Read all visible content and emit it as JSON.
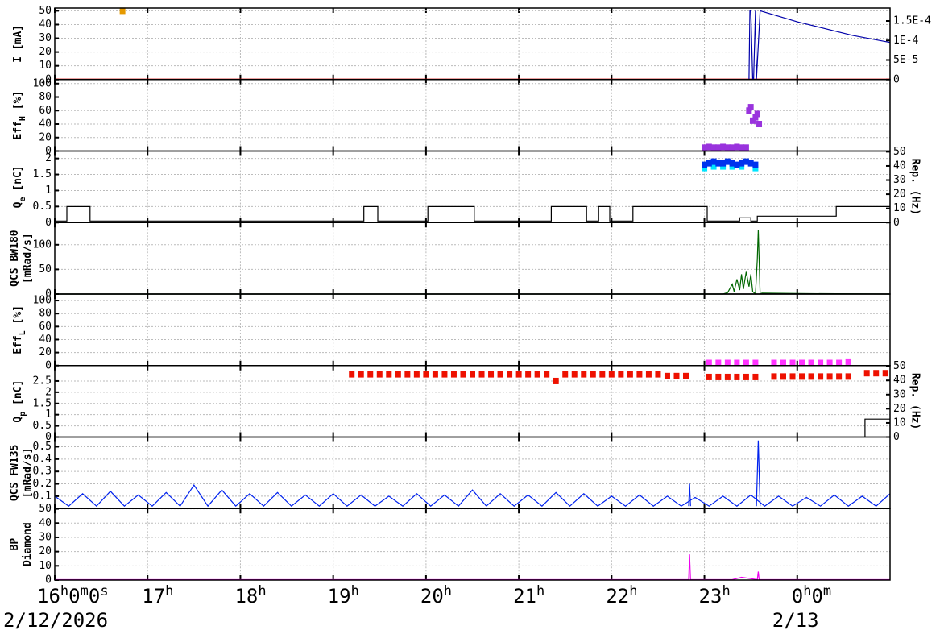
{
  "chart_data": {
    "type": "stripchart",
    "xlim": [
      16,
      25
    ],
    "xticks": [
      {
        "value": 16,
        "label": "16h0m0s"
      },
      {
        "value": 17,
        "label": "17h"
      },
      {
        "value": 18,
        "label": "18h"
      },
      {
        "value": 19,
        "label": "19h"
      },
      {
        "value": 20,
        "label": "20h"
      },
      {
        "value": 21,
        "label": "21h"
      },
      {
        "value": 22,
        "label": "22h"
      },
      {
        "value": 23,
        "label": "23h"
      },
      {
        "value": 24,
        "label": "0h0m"
      }
    ],
    "date_labels": [
      {
        "value": 16,
        "label": "2/12/2026"
      },
      {
        "value": 24,
        "label": "2/13"
      }
    ],
    "grid": true,
    "panels": [
      {
        "ylabel": [
          [
            {
              "text": "I [mA]"
            }
          ]
        ],
        "ylim": [
          0,
          52
        ],
        "yticks": [
          0,
          10,
          20,
          30,
          40,
          50
        ],
        "y2lim": [
          0,
          0.000183
        ],
        "y2ticks": [
          0,
          {
            "value": 5e-05,
            "label": "5E-5"
          },
          {
            "value": 0.0001,
            "label": "1E-4"
          },
          {
            "value": 0.00015,
            "label": "1.5E-4"
          }
        ],
        "series": [
          {
            "type": "line",
            "color": "#cc0000",
            "x": [
              16,
              25
            ],
            "values": [
              0.3,
              0.3
            ]
          },
          {
            "type": "line",
            "color": "#0000aa",
            "x": [
              16,
              23.48,
              23.49,
              23.5,
              23.52,
              23.53,
              23.55,
              23.56,
              23.6,
              23.8,
              24.0,
              24.3,
              24.6,
              25
            ],
            "values": [
              0,
              0,
              50,
              50,
              0,
              0,
              50,
              0,
              50,
              46,
              42,
              37,
              32,
              27
            ]
          },
          {
            "type": "scatter",
            "color": "#e69a00",
            "x": [
              16.73
            ],
            "values": [
              50
            ]
          }
        ]
      },
      {
        "ylabel": [
          [
            {
              "text": "Eff"
            },
            {
              "text": "H",
              "sub": true
            },
            {
              "text": " [%]"
            }
          ]
        ],
        "ylim": [
          0,
          106
        ],
        "yticks": [
          0,
          20,
          40,
          60,
          80,
          100
        ],
        "series": [
          {
            "type": "scatter",
            "color": "#9933dd",
            "x": [
              23.0,
              23.05,
              23.1,
              23.15,
              23.2,
              23.25,
              23.3,
              23.35,
              23.4,
              23.45,
              23.48,
              23.5,
              23.52,
              23.55,
              23.57,
              23.59
            ],
            "values": [
              5,
              6,
              5,
              5,
              6,
              5,
              5,
              6,
              5,
              5,
              60,
              65,
              45,
              50,
              55,
              40
            ]
          }
        ]
      },
      {
        "ylabel": [
          [
            {
              "text": "Q"
            },
            {
              "text": "e",
              "sub": true
            },
            {
              "text": " [nC]"
            }
          ]
        ],
        "ylim": [
          0,
          2.23
        ],
        "yticks": [
          0,
          0.5,
          1,
          1.5,
          2
        ],
        "y2label": "Rep. (Hz)",
        "y2lim": [
          0,
          50.5
        ],
        "y2ticks": [
          0,
          10,
          20,
          30,
          40,
          50
        ],
        "series": [
          {
            "type": "line",
            "color": "#000000",
            "x": [
              16,
              16.13,
              16.13,
              16.38,
              16.38,
              19.33,
              19.33,
              19.48,
              19.48,
              20.02,
              20.02,
              20.52,
              20.52,
              21.35,
              21.35,
              21.73,
              21.73,
              21.86,
              21.86,
              21.98,
              21.98,
              22.23,
              22.23,
              23.03,
              23.03,
              23.38,
              23.38,
              23.5,
              23.5,
              23.57,
              23.57,
              24.42,
              24.42,
              25
            ],
            "values": [
              0.05,
              0.05,
              0.5,
              0.5,
              0.05,
              0.05,
              0.5,
              0.5,
              0.05,
              0.05,
              0.5,
              0.5,
              0.05,
              0.05,
              0.5,
              0.5,
              0.05,
              0.05,
              0.5,
              0.5,
              0.05,
              0.05,
              0.5,
              0.5,
              0.05,
              0.05,
              0.15,
              0.15,
              0.05,
              0.05,
              0.2,
              0.2,
              0.5,
              0.5
            ]
          },
          {
            "type": "scatter",
            "color": "#00e5ff",
            "x": [
              23.0,
              23.1,
              23.2,
              23.3,
              23.4,
              23.55
            ],
            "values": [
              1.7,
              1.75,
              1.75,
              1.75,
              1.75,
              1.7
            ]
          },
          {
            "type": "scatter",
            "color": "#0033ee",
            "x": [
              23.0,
              23.05,
              23.1,
              23.15,
              23.2,
              23.25,
              23.3,
              23.35,
              23.4,
              23.45,
              23.5,
              23.55
            ],
            "values": [
              1.8,
              1.85,
              1.9,
              1.85,
              1.85,
              1.9,
              1.85,
              1.8,
              1.85,
              1.9,
              1.85,
              1.8
            ]
          }
        ]
      },
      {
        "ylabel": [
          [
            {
              "text": "QCS BW180"
            }
          ],
          [
            {
              "text": "[mRad/s]"
            }
          ]
        ],
        "ylim": [
          0,
          145
        ],
        "yticks": [
          0,
          50,
          100
        ],
        "series": [
          {
            "type": "line",
            "color": "#006600",
            "x": [
              16,
              23.2,
              23.25,
              23.3,
              23.32,
              23.35,
              23.38,
              23.4,
              23.42,
              23.45,
              23.48,
              23.5,
              23.52,
              23.55,
              23.57,
              23.58,
              23.6,
              23.62,
              24.0,
              25
            ],
            "values": [
              0,
              0,
              3,
              20,
              5,
              30,
              8,
              40,
              10,
              45,
              15,
              40,
              5,
              0,
              70,
              130,
              0,
              2,
              1,
              0
            ]
          }
        ]
      },
      {
        "ylabel": [
          [
            {
              "text": "Eff"
            },
            {
              "text": "L",
              "sub": true
            },
            {
              "text": " [%]"
            }
          ]
        ],
        "ylim": [
          0,
          110
        ],
        "yticks": [
          0,
          20,
          40,
          60,
          80,
          100
        ],
        "series": [
          {
            "type": "scatter",
            "color": "#ff33ff",
            "x": [
              23.05,
              23.15,
              23.25,
              23.35,
              23.45,
              23.55,
              23.75,
              23.85,
              23.95,
              24.05,
              24.15,
              24.25,
              24.35,
              24.45,
              24.55
            ],
            "values": [
              4,
              4,
              4,
              4,
              4,
              4,
              4,
              4,
              4,
              4,
              4,
              4,
              4,
              4,
              6
            ]
          }
        ]
      },
      {
        "ylabel": [
          [
            {
              "text": "Q"
            },
            {
              "text": "p",
              "sub": true
            },
            {
              "text": " [nC]"
            }
          ]
        ],
        "ylim": [
          0,
          3.19
        ],
        "yticks": [
          0,
          0.5,
          1,
          1.5,
          2,
          2.5
        ],
        "y2label": "Rep. (Hz)",
        "y2lim": [
          0,
          50.5
        ],
        "y2ticks": [
          0,
          10,
          20,
          30,
          40,
          50
        ],
        "series": [
          {
            "type": "scatter",
            "color": "#ee1100",
            "x": [
              19.2,
              19.3,
              19.4,
              19.5,
              19.6,
              19.7,
              19.8,
              19.9,
              20.0,
              20.1,
              20.2,
              20.3,
              20.4,
              20.5,
              20.6,
              20.7,
              20.8,
              20.9,
              21.0,
              21.1,
              21.2,
              21.3,
              21.4,
              21.5,
              21.6,
              21.7,
              21.8,
              21.9,
              22.0,
              22.1,
              22.2,
              22.3,
              22.4,
              22.5,
              22.6,
              22.7,
              22.8,
              23.05,
              23.15,
              23.25,
              23.35,
              23.45,
              23.55,
              23.75,
              23.85,
              23.95,
              24.05,
              24.15,
              24.25,
              24.35,
              24.45,
              24.55,
              24.75,
              24.85,
              24.95
            ],
            "values": [
              2.8,
              2.8,
              2.8,
              2.8,
              2.8,
              2.8,
              2.8,
              2.8,
              2.8,
              2.8,
              2.8,
              2.8,
              2.8,
              2.8,
              2.8,
              2.8,
              2.8,
              2.8,
              2.8,
              2.8,
              2.8,
              2.8,
              2.5,
              2.8,
              2.8,
              2.8,
              2.8,
              2.8,
              2.8,
              2.8,
              2.8,
              2.8,
              2.8,
              2.8,
              2.72,
              2.72,
              2.72,
              2.68,
              2.68,
              2.68,
              2.68,
              2.68,
              2.68,
              2.7,
              2.7,
              2.7,
              2.7,
              2.7,
              2.7,
              2.7,
              2.7,
              2.7,
              2.85,
              2.85,
              2.85
            ]
          },
          {
            "type": "line",
            "color": "#000000",
            "x": [
              24.73,
              24.73,
              25
            ],
            "values": [
              0,
              0.8,
              0.8
            ]
          }
        ]
      },
      {
        "ylabel": [
          [
            {
              "text": "QCS FW135"
            }
          ],
          [
            {
              "text": "[mRad/s]"
            }
          ]
        ],
        "ylim": [
          0,
          0.578
        ],
        "yticks": [
          0.1,
          0.2,
          0.3,
          0.4,
          0.5
        ],
        "series": [
          {
            "type": "line",
            "color": "#0022ee",
            "x": [
              16,
              16.15,
              16.3,
              16.45,
              16.6,
              16.75,
              16.9,
              17.05,
              17.2,
              17.35,
              17.5,
              17.65,
              17.8,
              17.95,
              18.1,
              18.25,
              18.4,
              18.55,
              18.7,
              18.85,
              19,
              19.15,
              19.3,
              19.45,
              19.6,
              19.75,
              19.9,
              20.05,
              20.2,
              20.35,
              20.5,
              20.65,
              20.8,
              20.95,
              21.1,
              21.25,
              21.4,
              21.55,
              21.7,
              21.85,
              22,
              22.15,
              22.3,
              22.45,
              22.6,
              22.75,
              22.9,
              23.05,
              23.2,
              23.35,
              23.5,
              23.65,
              23.8,
              23.95,
              24.1,
              24.25,
              24.4,
              24.55,
              24.7,
              24.85,
              25
            ],
            "values": [
              0.1,
              0.02,
              0.12,
              0.02,
              0.14,
              0.02,
              0.11,
              0.02,
              0.13,
              0.02,
              0.19,
              0.02,
              0.15,
              0.02,
              0.12,
              0.02,
              0.13,
              0.02,
              0.11,
              0.02,
              0.12,
              0.02,
              0.11,
              0.02,
              0.1,
              0.02,
              0.12,
              0.02,
              0.11,
              0.02,
              0.15,
              0.02,
              0.12,
              0.02,
              0.11,
              0.02,
              0.13,
              0.02,
              0.12,
              0.02,
              0.1,
              0.02,
              0.11,
              0.02,
              0.1,
              0.02,
              0.09,
              0.02,
              0.1,
              0.02,
              0.11,
              0.02,
              0.1,
              0.02,
              0.09,
              0.02,
              0.11,
              0.02,
              0.1,
              0.02,
              0.12
            ]
          },
          {
            "type": "line",
            "color": "#0022ee",
            "x": [
              22.83,
              22.84,
              22.85
            ],
            "values": [
              0.02,
              0.2,
              0.02
            ]
          },
          {
            "type": "line",
            "color": "#0022ee",
            "x": [
              23.56,
              23.58,
              23.6
            ],
            "values": [
              0.02,
              0.55,
              0.02
            ]
          }
        ]
      },
      {
        "ylabel": [
          [
            {
              "text": "BP"
            }
          ],
          [
            {
              "text": "Diamond"
            }
          ]
        ],
        "ylim": [
          0,
          50.2
        ],
        "yticks": [
          0,
          10,
          20,
          30,
          40,
          50
        ],
        "series": [
          {
            "type": "line",
            "color": "#ee00ee",
            "x": [
              16,
              22.83,
              22.84,
              22.85,
              23.3,
              23.4,
              23.5,
              23.57,
              23.58,
              23.59,
              25
            ],
            "values": [
              0.3,
              0.3,
              18,
              0.3,
              0.3,
              2,
              1,
              0.3,
              6,
              0.3,
              0.3
            ]
          }
        ]
      }
    ]
  }
}
